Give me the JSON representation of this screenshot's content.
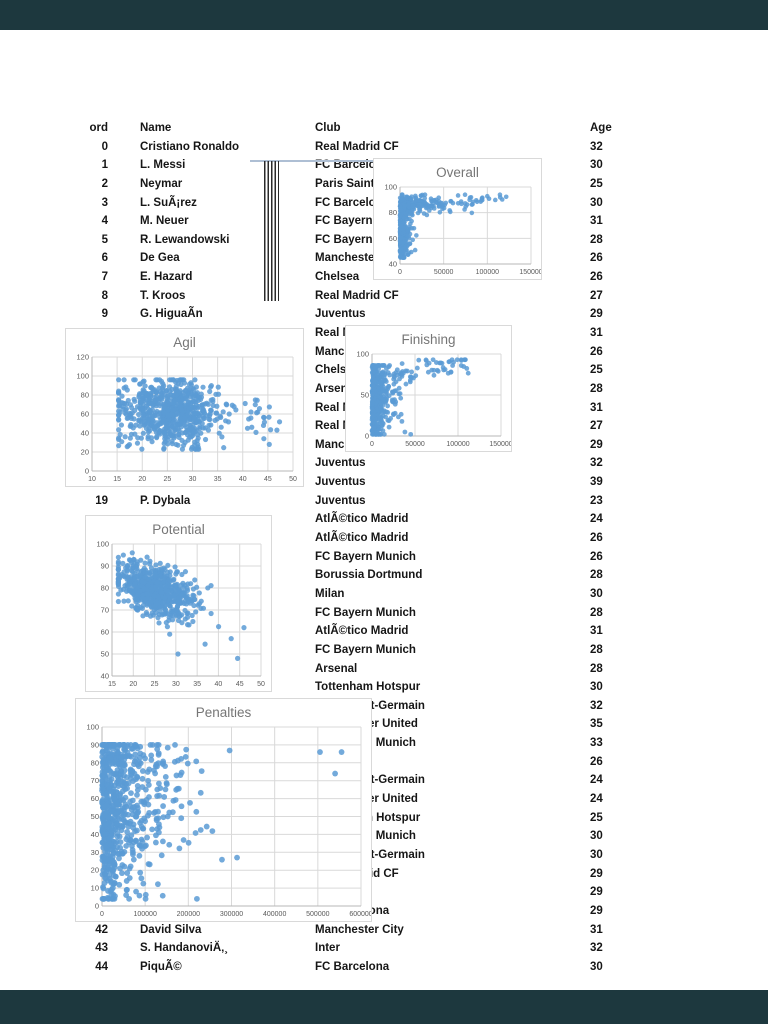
{
  "page": {
    "frame_bg": "#1d383e",
    "paper_bg": "#ffffff"
  },
  "table": {
    "headers": {
      "ord": "ord",
      "name": "Name",
      "club": "Club",
      "age": "Age"
    },
    "rows": [
      {
        "ord": "0",
        "name": "Cristiano Ronaldo",
        "club": "Real Madrid CF",
        "age": "32"
      },
      {
        "ord": "1",
        "name": "L. Messi",
        "club": "FC Barcelona",
        "age": "30"
      },
      {
        "ord": "2",
        "name": "Neymar",
        "club": "Paris Saint-Germain",
        "age": "25"
      },
      {
        "ord": "3",
        "name": "L. SuÃ¡rez",
        "club": "FC Barcelona",
        "age": "30"
      },
      {
        "ord": "4",
        "name": "M. Neuer",
        "club": "FC Bayern Munich",
        "age": "31"
      },
      {
        "ord": "5",
        "name": "R. Lewandowski",
        "club": "FC Bayern Munich",
        "age": "28"
      },
      {
        "ord": "6",
        "name": "De Gea",
        "club": "Manchester United",
        "age": "26"
      },
      {
        "ord": "7",
        "name": "E. Hazard",
        "club": "Chelsea",
        "age": "26"
      },
      {
        "ord": "8",
        "name": "T. Kroos",
        "club": "Real Madrid CF",
        "age": "27"
      },
      {
        "ord": "9",
        "name": "G. HiguaÃn",
        "club": "Juventus",
        "age": "29"
      },
      {
        "ord": "",
        "name": "",
        "club": "Real Madrid CF",
        "age": "31"
      },
      {
        "ord": "",
        "name": "",
        "club": "Manchester City",
        "age": "26"
      },
      {
        "ord": "",
        "name": "",
        "club": "Chelsea",
        "age": "25"
      },
      {
        "ord": "",
        "name": "",
        "club": "Arsenal",
        "age": "28"
      },
      {
        "ord": "",
        "name": "",
        "club": "Real Madrid CF",
        "age": "31"
      },
      {
        "ord": "",
        "name": "",
        "club": "Real Madrid CF",
        "age": "27"
      },
      {
        "ord": "",
        "name": "",
        "club": "Manchester City",
        "age": "29"
      },
      {
        "ord": "",
        "name": "",
        "club": "Juventus",
        "age": "32"
      },
      {
        "ord": "",
        "name": "",
        "club": "Juventus",
        "age": "39"
      },
      {
        "ord": "19",
        "name": "P. Dybala",
        "club": "Juventus",
        "age": "23"
      },
      {
        "ord": "",
        "name": "",
        "club": "AtlÃ©tico Madrid",
        "age": "24"
      },
      {
        "ord": "",
        "name": "",
        "club": "AtlÃ©tico Madrid",
        "age": "26"
      },
      {
        "ord": "",
        "name": "",
        "club": "FC Bayern Munich",
        "age": "26"
      },
      {
        "ord": "",
        "name": "",
        "club": "Borussia Dortmund",
        "age": "28"
      },
      {
        "ord": "",
        "name": "",
        "club": "Milan",
        "age": "30"
      },
      {
        "ord": "",
        "name": "",
        "club": "FC Bayern Munich",
        "age": "28"
      },
      {
        "ord": "",
        "name": "",
        "club": "AtlÃ©tico Madrid",
        "age": "31"
      },
      {
        "ord": "",
        "name": "",
        "club": "FC Bayern Munich",
        "age": "28"
      },
      {
        "ord": "",
        "name": "",
        "club": "Arsenal",
        "age": "28"
      },
      {
        "ord": "",
        "name": "",
        "club": "Tottenham Hotspur",
        "age": "30"
      },
      {
        "ord": "",
        "name": "",
        "club": "Paris Saint-Germain",
        "age": "32"
      },
      {
        "ord": "",
        "name": "",
        "club": "Manchester United",
        "age": "35"
      },
      {
        "ord": "",
        "name": "",
        "club": "FC Bayern Munich",
        "age": "33"
      },
      {
        "ord": "",
        "name": "",
        "club": "",
        "age": "26"
      },
      {
        "ord": "",
        "name": "",
        "club": "Paris Saint-Germain",
        "age": "24"
      },
      {
        "ord": "",
        "name": "",
        "club": "Manchester United",
        "age": "24"
      },
      {
        "ord": "",
        "name": "",
        "club": "Tottenham Hotspur",
        "age": "25"
      },
      {
        "ord": "",
        "name": "",
        "club": "FC Bayern Munich",
        "age": "30"
      },
      {
        "ord": "",
        "name": "",
        "club": "Paris Saint-Germain",
        "age": "30"
      },
      {
        "ord": "",
        "name": "",
        "club": "Real Madrid CF",
        "age": "29"
      },
      {
        "ord": "",
        "name": "",
        "club": "",
        "age": "29"
      },
      {
        "ord": "",
        "name": "",
        "club": "FC Barcelona",
        "age": "29"
      },
      {
        "ord": "42",
        "name": "David Silva",
        "club": "Manchester City",
        "age": "31"
      },
      {
        "ord": "43",
        "name": "S. HandanoviÄ‚¸",
        "club": "Inter",
        "age": "32"
      },
      {
        "ord": "44",
        "name": "PiquÃ©",
        "club": "FC Barcelona",
        "age": "30"
      }
    ]
  },
  "chart_data": [
    {
      "id": "overall",
      "type": "scatter",
      "title": "Overall",
      "seed": 11,
      "marker": "#5B9BD5",
      "r": 2.3,
      "grid": true,
      "legend": "none",
      "x": {
        "min": 0,
        "max": 150000,
        "ticks": [
          0,
          50000,
          100000,
          150000
        ]
      },
      "y": {
        "min": 40,
        "max": 100,
        "ticks": [
          40,
          60,
          80,
          100
        ]
      },
      "clusters": [
        {
          "n": 300,
          "x": {
            "d": "exp",
            "mu": 3500,
            "min": 0,
            "max": 20000
          },
          "y": {
            "d": "norm",
            "mu": 64,
            "sd": 10,
            "min": 45,
            "max": 85
          }
        },
        {
          "n": 230,
          "x": {
            "d": "exp",
            "mu": 18000,
            "min": 0,
            "max": 90000
          },
          "y": {
            "d": "norm",
            "mu": 86,
            "sd": 3.5,
            "min": 77,
            "max": 94
          }
        },
        {
          "n": 25,
          "x": {
            "d": "uniform",
            "min": 60000,
            "max": 123000
          },
          "y": {
            "d": "norm",
            "mu": 89,
            "sd": 2.5,
            "min": 83,
            "max": 94
          }
        }
      ]
    },
    {
      "id": "agil",
      "type": "scatter",
      "title": "Agil",
      "seed": 22,
      "marker": "#5B9BD5",
      "r": 2.6,
      "grid": true,
      "legend": "none",
      "x": {
        "min": 10,
        "max": 50,
        "ticks": [
          10,
          15,
          20,
          25,
          30,
          35,
          40,
          45,
          50
        ]
      },
      "y": {
        "min": 0,
        "max": 120,
        "ticks": [
          0,
          20,
          40,
          60,
          80,
          100,
          120
        ]
      },
      "clusters": [
        {
          "n": 700,
          "x": {
            "d": "norm",
            "mu": 25.5,
            "sd": 5.2,
            "min": 15.3,
            "max": 44
          },
          "y": {
            "d": "norm",
            "mu": 62,
            "sd": 17,
            "min": 23,
            "max": 96
          }
        },
        {
          "n": 18,
          "x": {
            "d": "uniform",
            "min": 40,
            "max": 47.5
          },
          "y": {
            "d": "norm",
            "mu": 55,
            "sd": 13,
            "min": 28,
            "max": 78
          }
        },
        {
          "points": [
            [
              46.8,
              43
            ],
            [
              44.2,
              34
            ]
          ]
        }
      ]
    },
    {
      "id": "finishing",
      "type": "scatter",
      "title": "Finishing",
      "seed": 33,
      "marker": "#5B9BD5",
      "r": 2.4,
      "grid": true,
      "legend": "none",
      "x": {
        "min": 0,
        "max": 150000,
        "ticks": [
          0,
          50000,
          100000,
          150000
        ]
      },
      "y": {
        "min": 0,
        "max": 100,
        "ticks": [
          0,
          50,
          100
        ]
      },
      "clusters": [
        {
          "n": 420,
          "x": {
            "d": "exp",
            "mu": 8000,
            "min": 0,
            "max": 55000
          },
          "y": {
            "d": "norm",
            "mu": 42,
            "sd": 24,
            "min": 2,
            "max": 86
          }
        },
        {
          "n": 60,
          "x": {
            "d": "uniform",
            "min": 25000,
            "max": 112000
          },
          "y": {
            "d": "trend",
            "a": 72,
            "b": 0.00018,
            "sd": 6,
            "min": 55,
            "max": 93
          }
        }
      ]
    },
    {
      "id": "potential",
      "type": "scatter",
      "title": "Potential",
      "seed": 44,
      "marker": "#5B9BD5",
      "r": 2.6,
      "grid": true,
      "legend": "none",
      "x": {
        "min": 15,
        "max": 50,
        "ticks": [
          15,
          20,
          25,
          30,
          35,
          40,
          45,
          50
        ]
      },
      "y": {
        "min": 40,
        "max": 100,
        "ticks": [
          40,
          50,
          60,
          70,
          80,
          90,
          100
        ]
      },
      "clusters": [
        {
          "n": 650,
          "x": {
            "d": "norm",
            "mu": 25,
            "sd": 4.6,
            "min": 16.5,
            "max": 41.5
          },
          "y": {
            "d": "trend",
            "a": 84,
            "b": -0.55,
            "sd": 5.5,
            "min": 52,
            "max": 96
          }
        },
        {
          "points": [
            [
              44.5,
              48
            ],
            [
              46,
              62
            ],
            [
              30.5,
              50
            ],
            [
              43,
              57
            ]
          ]
        }
      ]
    },
    {
      "id": "penalties",
      "type": "scatter",
      "title": "Penalties",
      "seed": 55,
      "marker": "#5B9BD5",
      "r": 2.9,
      "grid": true,
      "legend": "none",
      "x": {
        "min": 0,
        "max": 600000,
        "ticks": [
          0,
          100000,
          200000,
          300000,
          400000,
          500000,
          600000
        ]
      },
      "y": {
        "min": 0,
        "max": 100,
        "ticks": [
          0,
          10,
          20,
          30,
          40,
          50,
          60,
          70,
          80,
          90,
          100
        ]
      },
      "clusters": [
        {
          "n": 480,
          "x": {
            "d": "exp",
            "mu": 60000,
            "min": 0,
            "max": 360000
          },
          "y": {
            "d": "norm",
            "mu": 55,
            "sd": 23,
            "min": 4,
            "max": 90
          }
        },
        {
          "n": 150,
          "x": {
            "d": "exp",
            "mu": 25000,
            "min": 0,
            "max": 120000
          },
          "y": {
            "d": "norm",
            "mu": 35,
            "sd": 20,
            "min": 4,
            "max": 80
          }
        },
        {
          "n": 80,
          "x": {
            "d": "exp",
            "mu": 50000,
            "min": 0,
            "max": 250000
          },
          "y": {
            "d": "norm",
            "mu": 80,
            "sd": 6,
            "min": 65,
            "max": 90
          }
        },
        {
          "points": [
            [
              505000,
              86
            ],
            [
              555000,
              86
            ],
            [
              540000,
              74
            ]
          ]
        }
      ]
    }
  ],
  "chart_style": {
    "title_color": "#767676",
    "label_color": "#595959",
    "gridline_color": "#d9d9d9",
    "axis_color": "#b7b7b7",
    "marker_color": "#5B9BD5"
  }
}
